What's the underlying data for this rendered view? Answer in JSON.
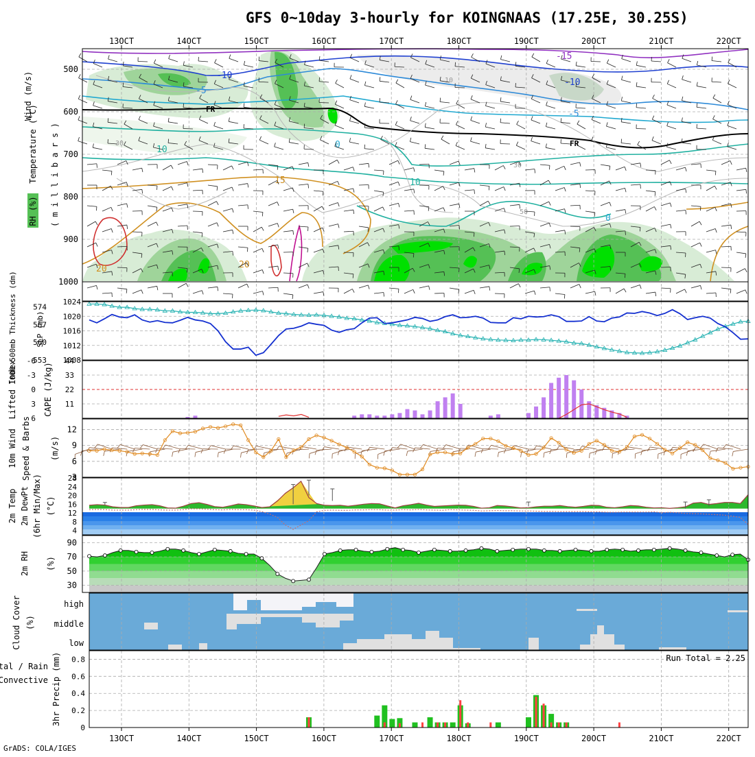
{
  "title": "GFS 0~10day 3-hourly for KOINGNAAS (17.25E, 30.25S)",
  "credit": "GrADS: COLA/IGES",
  "colors": {
    "grid": "#aaaaaa",
    "rh_light": "#d8ecd6",
    "rh_mid": "#9fd49a",
    "rh_dark": "#55c055",
    "rh_bright": "#00e000",
    "slp": "#1430d0",
    "thickness": "#20b0b0",
    "cape": "#c080f0",
    "lifted": "#e03030",
    "wind10": "#e08a20",
    "barb": "#8a5a3a",
    "temp": "#a04040",
    "rh2m": "#10c010",
    "cloud_bg": "#6aaad8",
    "cloud_fill": "#e0e0e0",
    "precip_total": "#20c020",
    "precip_conv": "#ff4040"
  },
  "time_axis": {
    "top_labels": [
      "13OCT",
      "14OCT",
      "15OCT",
      "16OCT",
      "17OCT",
      "18OCT",
      "19OCT",
      "20OCT",
      "21OCT",
      "22OCT"
    ],
    "bottom_labels": [
      "13OCT",
      "14OCT",
      "15OCT",
      "16OCT",
      "17OCT",
      "18OCT",
      "19OCT",
      "20OCT",
      "21OCT",
      "22OCT"
    ]
  },
  "panels": {
    "upper": {
      "ylabels": [
        "Wind (m/s)",
        "Temperature (°C)",
        "RH (%)",
        "( m i l l i b a r s )"
      ],
      "yticks": [
        "500",
        "600",
        "700",
        "800",
        "900",
        "1000"
      ],
      "contour_labels": {
        "t_minus15": "-15",
        "t_minus10": "-10",
        "t_minus10b": "-10",
        "t_minus5": "-5",
        "t_minus5b": "-5",
        "t_0": "0",
        "t_0b": "0",
        "t_10": "10",
        "t_10b": "10",
        "t_15": "15",
        "t_20": "20",
        "t_20b": "20",
        "fr": "FR",
        "fr2": "FR",
        "rh30": "30",
        "rh30b": "30",
        "rh50": "50",
        "rh10": "10"
      }
    },
    "slp": {
      "ylabel_left": "1000-500mb Thickness (dm)",
      "ylabel_right": "SLP (mb)",
      "yticks_left": [
        "574",
        "567",
        "560",
        "553"
      ],
      "yticks_right": [
        "1024",
        "1020",
        "1016",
        "1012",
        "1008"
      ]
    },
    "cape": {
      "ylabel_left": "Lifted Index",
      "ylabel_right": "CAPE (J/kg)",
      "yticks_left": [
        "-6",
        "-3",
        "0",
        "3",
        "6"
      ],
      "yticks_right": [
        "44",
        "33",
        "22",
        "11"
      ]
    },
    "wind": {
      "ylabel_left": "10m Wind",
      "ylabel_mid": "Speed & Barbs",
      "ylabel_right": "(m/s)",
      "yticks": [
        "12",
        "9",
        "6",
        "3"
      ]
    },
    "temp": {
      "ylabel_lines": [
        "2m Temp",
        "2m DewPt",
        "(6hr Min/Max)"
      ],
      "ylabel_unit": "(°C)",
      "yticks": [
        "28",
        "24",
        "20",
        "16",
        "12",
        "8",
        "4"
      ]
    },
    "rh": {
      "ylabel": "2m RH",
      "ylabel_unit": "(%)",
      "yticks": [
        "90",
        "70",
        "50",
        "30"
      ]
    },
    "cloud": {
      "ylabel": "Cloud Cover",
      "ylabel_unit": "(%)",
      "levels": [
        "high",
        "middle",
        "low"
      ]
    },
    "precip": {
      "ylabel_left": "Total / Rain",
      "ylabel_left2": "Convective",
      "ylabel_right": "3hr Precip (mm)",
      "yticks": [
        "0.8",
        "0.6",
        "0.4",
        "0.2",
        "0"
      ],
      "run_total": "Run Total = 2.25"
    }
  },
  "chart_data": [
    {
      "type": "line",
      "name": "SLP (mb)",
      "ylim": [
        1008,
        1024
      ],
      "values": [
        1019,
        1018.2,
        1019.3,
        1020.5,
        1019.8,
        1019.6,
        1020.4,
        1019,
        1018.4,
        1018.8,
        1018.3,
        1018.2,
        1018.9,
        1019.7,
        1019,
        1018.7,
        1018,
        1016,
        1013,
        1011,
        1011,
        1011.5,
        1009.3,
        1010,
        1012.3,
        1014.7,
        1016.5,
        1016.7,
        1017.3,
        1018.2,
        1017.8,
        1017.5,
        1016.2,
        1015.6,
        1016.3,
        1016.6,
        1018.2,
        1019.5,
        1019.6,
        1018,
        1018.2,
        1018.6,
        1019,
        1019.7,
        1019.4,
        1018.6,
        1019,
        1019.9,
        1020.4,
        1019.6,
        1019.7,
        1020,
        1019.5,
        1018.3,
        1018.2,
        1018.2,
        1019.6,
        1019.3,
        1020,
        1019.8,
        1019.9,
        1020.4,
        1019.9,
        1018.6,
        1018.6,
        1018.7,
        1019.9,
        1018.7,
        1018.5,
        1019.5,
        1019.8,
        1020.9,
        1020.8,
        1021.3,
        1020.9,
        1020.2,
        1020.8,
        1021.8,
        1020.7,
        1019.1,
        1019.6,
        1020,
        1019.5,
        1018,
        1017.1,
        1015.5,
        1013.7,
        1013.8
      ]
    },
    {
      "type": "line",
      "name": "1000-500mb Thickness (dm)",
      "ylim": [
        553,
        576
      ],
      "values": [
        575.1,
        575.1,
        574.9,
        574.3,
        573.8,
        573.8,
        573.3,
        573,
        573,
        572.8,
        572.4,
        572.4,
        572,
        571.8,
        571.8,
        571.6,
        571.3,
        571.3,
        571.5,
        572,
        572.4,
        572.6,
        572.7,
        572.5,
        572,
        571.5,
        571.3,
        571,
        570.8,
        570.7,
        570.8,
        570.6,
        570.3,
        570,
        569.5,
        569.3,
        568.8,
        568.4,
        567.8,
        567.5,
        567.1,
        566.7,
        566.5,
        566.2,
        565.8,
        565.4,
        564.7,
        564.2,
        563.4,
        562.7,
        562.3,
        561.8,
        561.4,
        561.1,
        560.9,
        560.8,
        560.7,
        560.9,
        560.9,
        561.1,
        561,
        560.8,
        560.5,
        560.2,
        559.7,
        559.5,
        558.9,
        558.2,
        557.6,
        557,
        556.5,
        556,
        555.8,
        555.7,
        555.9,
        556.3,
        556.9,
        557.7,
        558.6,
        559.8,
        561,
        562.4,
        563.8,
        565.2,
        566.3,
        567.2,
        568.1,
        568.3
      ]
    },
    {
      "type": "bar",
      "name": "CAPE (J/kg)",
      "ylim": [
        0,
        44
      ],
      "points": [
        [
          13,
          1
        ],
        [
          14,
          2
        ],
        [
          35,
          2
        ],
        [
          36,
          3
        ],
        [
          37,
          3
        ],
        [
          38,
          2
        ],
        [
          39,
          2
        ],
        [
          40,
          3
        ],
        [
          41,
          4
        ],
        [
          42,
          7
        ],
        [
          43,
          6
        ],
        [
          44,
          3
        ],
        [
          45,
          6
        ],
        [
          46,
          13
        ],
        [
          47,
          16
        ],
        [
          48,
          19
        ],
        [
          49,
          11
        ],
        [
          53,
          2
        ],
        [
          54,
          3
        ],
        [
          58,
          4
        ],
        [
          59,
          9
        ],
        [
          60,
          16
        ],
        [
          61,
          27
        ],
        [
          62,
          31
        ],
        [
          63,
          33
        ],
        [
          64,
          29
        ],
        [
          65,
          22
        ],
        [
          66,
          13
        ],
        [
          67,
          10
        ],
        [
          68,
          8
        ],
        [
          69,
          6
        ],
        [
          70,
          4
        ],
        [
          71,
          2
        ]
      ]
    },
    {
      "type": "line",
      "name": "Lifted Index",
      "ylim": [
        6,
        -6
      ],
      "values_segment": [
        [
          25,
          5.6
        ],
        [
          26,
          5.3
        ],
        [
          27,
          5.5
        ],
        [
          28,
          5.2
        ],
        [
          29,
          5.8
        ],
        [
          62,
          6
        ],
        [
          63,
          5.2
        ],
        [
          64,
          4.2
        ],
        [
          65,
          3.2
        ],
        [
          66,
          3
        ],
        [
          67,
          3.6
        ],
        [
          68,
          4.2
        ],
        [
          69,
          4.7
        ],
        [
          70,
          5.1
        ],
        [
          71,
          5.8
        ]
      ]
    },
    {
      "type": "line",
      "name": "10m Wind Speed (m/s)",
      "ylim": [
        3,
        14
      ],
      "values": [
        8,
        8,
        8.3,
        8.1,
        8,
        7.8,
        7.4,
        7.5,
        7.4,
        7.2,
        10,
        11.7,
        11.3,
        11.4,
        11.6,
        12.2,
        12.5,
        12.3,
        12.6,
        13,
        12.8,
        10,
        7.7,
        6.8,
        8,
        10.2,
        6.8,
        8.1,
        8.7,
        10.2,
        10.9,
        10.5,
        9.9,
        9.2,
        8.6,
        7.8,
        6.9,
        5.4,
        4.8,
        4.7,
        4.3,
        3.5,
        3.5,
        3.5,
        4.5,
        7.3,
        7.7,
        7.7,
        7.4,
        7.5,
        8.6,
        9.3,
        10.3,
        10.3,
        9.8,
        8.9,
        8.5,
        8,
        7.2,
        7.4,
        8.6,
        10.4,
        9.5,
        8.2,
        7.6,
        8,
        9.3,
        9.9,
        9.1,
        8,
        7.8,
        8.7,
        10.7,
        11,
        10.3,
        9.3,
        8.2,
        7.5,
        8.5,
        9.6,
        9.1,
        8.1,
        6.6,
        6.2,
        5.7,
        4.6,
        4.8,
        5
      ]
    },
    {
      "type": "area",
      "name": "2m Temp (°C)",
      "ylim": [
        2,
        28
      ],
      "values": [
        15.5,
        15.8,
        15.6,
        14.8,
        14.5,
        14.5,
        15.3,
        15.6,
        15.8,
        15.3,
        14.3,
        14.2,
        15.1,
        16.3,
        16.7,
        15.9,
        14.9,
        14.6,
        15.3,
        16.1,
        15.8,
        15.2,
        14.5,
        14.8,
        17.5,
        21,
        23.5,
        26.5,
        19,
        16.3,
        15.5,
        15.4,
        15.5,
        15.1,
        15.5,
        16,
        16.3,
        16.2,
        15.2,
        14.3,
        15.3,
        15.8,
        16.4,
        15.6,
        15,
        15.2,
        15.4,
        15.6,
        15.5,
        15,
        14.2,
        14.4,
        15.4,
        15.2,
        14.8,
        14.3,
        14.4,
        14.8,
        15.1,
        15.1,
        15.4,
        14.9,
        14.6,
        15,
        15.5,
        15.4,
        14.6,
        14.4,
        14.8,
        15.4,
        15.2,
        14.6,
        14.3,
        14.4,
        14.1,
        14.4,
        14.8,
        16.5,
        16.8,
        15.9,
        16.3,
        16.8,
        16.8,
        16.3,
        20.3
      ]
    },
    {
      "type": "line",
      "name": "2m DewPt (°C)",
      "ylim": [
        2,
        28
      ],
      "values": [
        13.5,
        13.6,
        13.5,
        13.3,
        13.3,
        13.3,
        13.5,
        13.6,
        13.6,
        13.4,
        13.3,
        13.3,
        13.5,
        13.9,
        13.9,
        13.7,
        13.5,
        13.4,
        13.6,
        13.5,
        13.5,
        13.3,
        12.6,
        11.5,
        10,
        6.5,
        4.5,
        6.5,
        8.5,
        12.5,
        13.2,
        13.3,
        13.2,
        13.2,
        13.4,
        13.4,
        13.5,
        13.5,
        13.3,
        13.3,
        13.5,
        13.4,
        13.6,
        13.4,
        13.3,
        13.2,
        13.5,
        13.4,
        13.3,
        13.2,
        12.9,
        13,
        13.1,
        13,
        13,
        12.9,
        12.9,
        12.8,
        12.7,
        12.7,
        12.6,
        12.6,
        12.6,
        12.6,
        12.5,
        12.5,
        12.3,
        12.3,
        12.4,
        12.4,
        12.4,
        12.4,
        12.5,
        12.1,
        12.3,
        12.1,
        11.8,
        11.7,
        11.6,
        11.4,
        11.2,
        11,
        10.5,
        10,
        6.7
      ]
    },
    {
      "type": "area",
      "name": "2m RH (%)",
      "ylim": [
        20,
        100
      ],
      "values": [
        71,
        70,
        72,
        76,
        79,
        79,
        77,
        76,
        76,
        78,
        81,
        81,
        79,
        76,
        74,
        77,
        80,
        79,
        78,
        75,
        74,
        74,
        68,
        58,
        46,
        40,
        36,
        37,
        38,
        55,
        74,
        76,
        79,
        80,
        80,
        78,
        77,
        78,
        81,
        83,
        80,
        79,
        76,
        78,
        80,
        79,
        78,
        78,
        79,
        80,
        82,
        81,
        78,
        79,
        80,
        81,
        81,
        81,
        79,
        79,
        78,
        79,
        80,
        79,
        78,
        78,
        80,
        81,
        80,
        78,
        79,
        80,
        80,
        81,
        82,
        81,
        79,
        77,
        76,
        74,
        72,
        70,
        73,
        74,
        66
      ]
    },
    {
      "type": "bar",
      "name": "3hr Precip Total (mm)",
      "ylim": [
        0,
        0.9
      ],
      "points": [
        [
          29,
          0.12
        ],
        [
          38,
          0.14
        ],
        [
          39,
          0.26
        ],
        [
          40,
          0.1
        ],
        [
          41,
          0.11
        ],
        [
          43,
          0.06
        ],
        [
          45,
          0.12
        ],
        [
          46,
          0.06
        ],
        [
          47,
          0.06
        ],
        [
          48,
          0.06
        ],
        [
          49,
          0.26
        ],
        [
          50,
          0.05
        ],
        [
          54,
          0.06
        ],
        [
          58,
          0.12
        ],
        [
          59,
          0.38
        ],
        [
          60,
          0.26
        ],
        [
          61,
          0.16
        ],
        [
          62,
          0.06
        ],
        [
          63,
          0.06
        ]
      ]
    },
    {
      "type": "bar",
      "name": "3hr Precip Convective (mm)",
      "ylim": [
        0,
        0.9
      ],
      "points": [
        [
          29,
          0.12
        ],
        [
          39,
          0.06
        ],
        [
          41,
          0.05
        ],
        [
          44,
          0.06
        ],
        [
          46,
          0.06
        ],
        [
          47,
          0.06
        ],
        [
          49,
          0.32
        ],
        [
          50,
          0.06
        ],
        [
          53,
          0.06
        ],
        [
          59,
          0.36
        ],
        [
          60,
          0.28
        ],
        [
          61,
          0.06
        ],
        [
          62,
          0.06
        ],
        [
          63,
          0.06
        ],
        [
          70,
          0.06
        ]
      ]
    }
  ]
}
